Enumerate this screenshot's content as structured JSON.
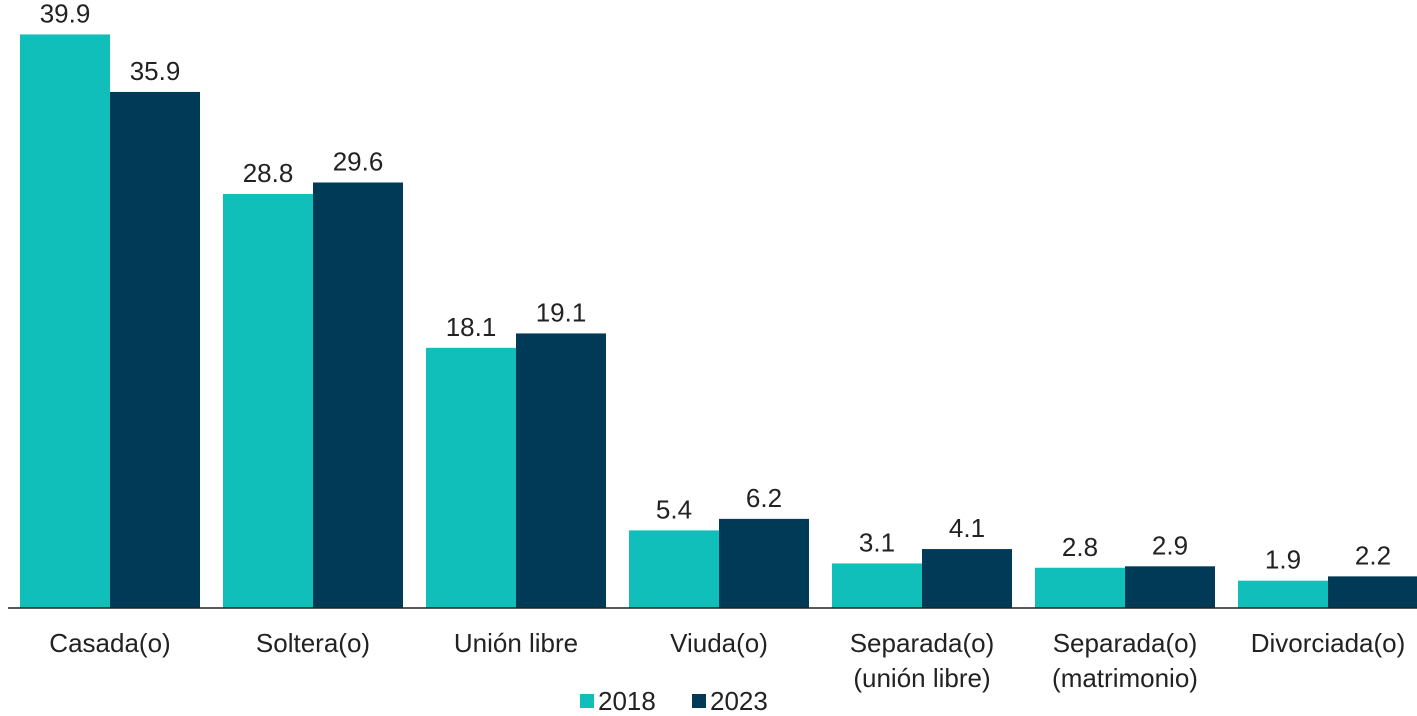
{
  "chart_data": {
    "type": "bar",
    "categories": [
      "Casada(o)",
      "Soltera(o)",
      "Unión libre",
      "Viuda(o)",
      "Separada(o)\n(unión libre)",
      "Separada(o)\n(matrimonio)",
      "Divorciada(o)"
    ],
    "series": [
      {
        "name": "2018",
        "color": "#10bfb9",
        "values": [
          39.9,
          28.8,
          18.1,
          5.4,
          3.1,
          2.8,
          1.9
        ]
      },
      {
        "name": "2023",
        "color": "#003a57",
        "values": [
          35.9,
          29.6,
          19.1,
          6.2,
          4.1,
          2.9,
          2.2
        ]
      }
    ],
    "ylim": [
      0,
      40
    ],
    "legend": "bottom"
  }
}
